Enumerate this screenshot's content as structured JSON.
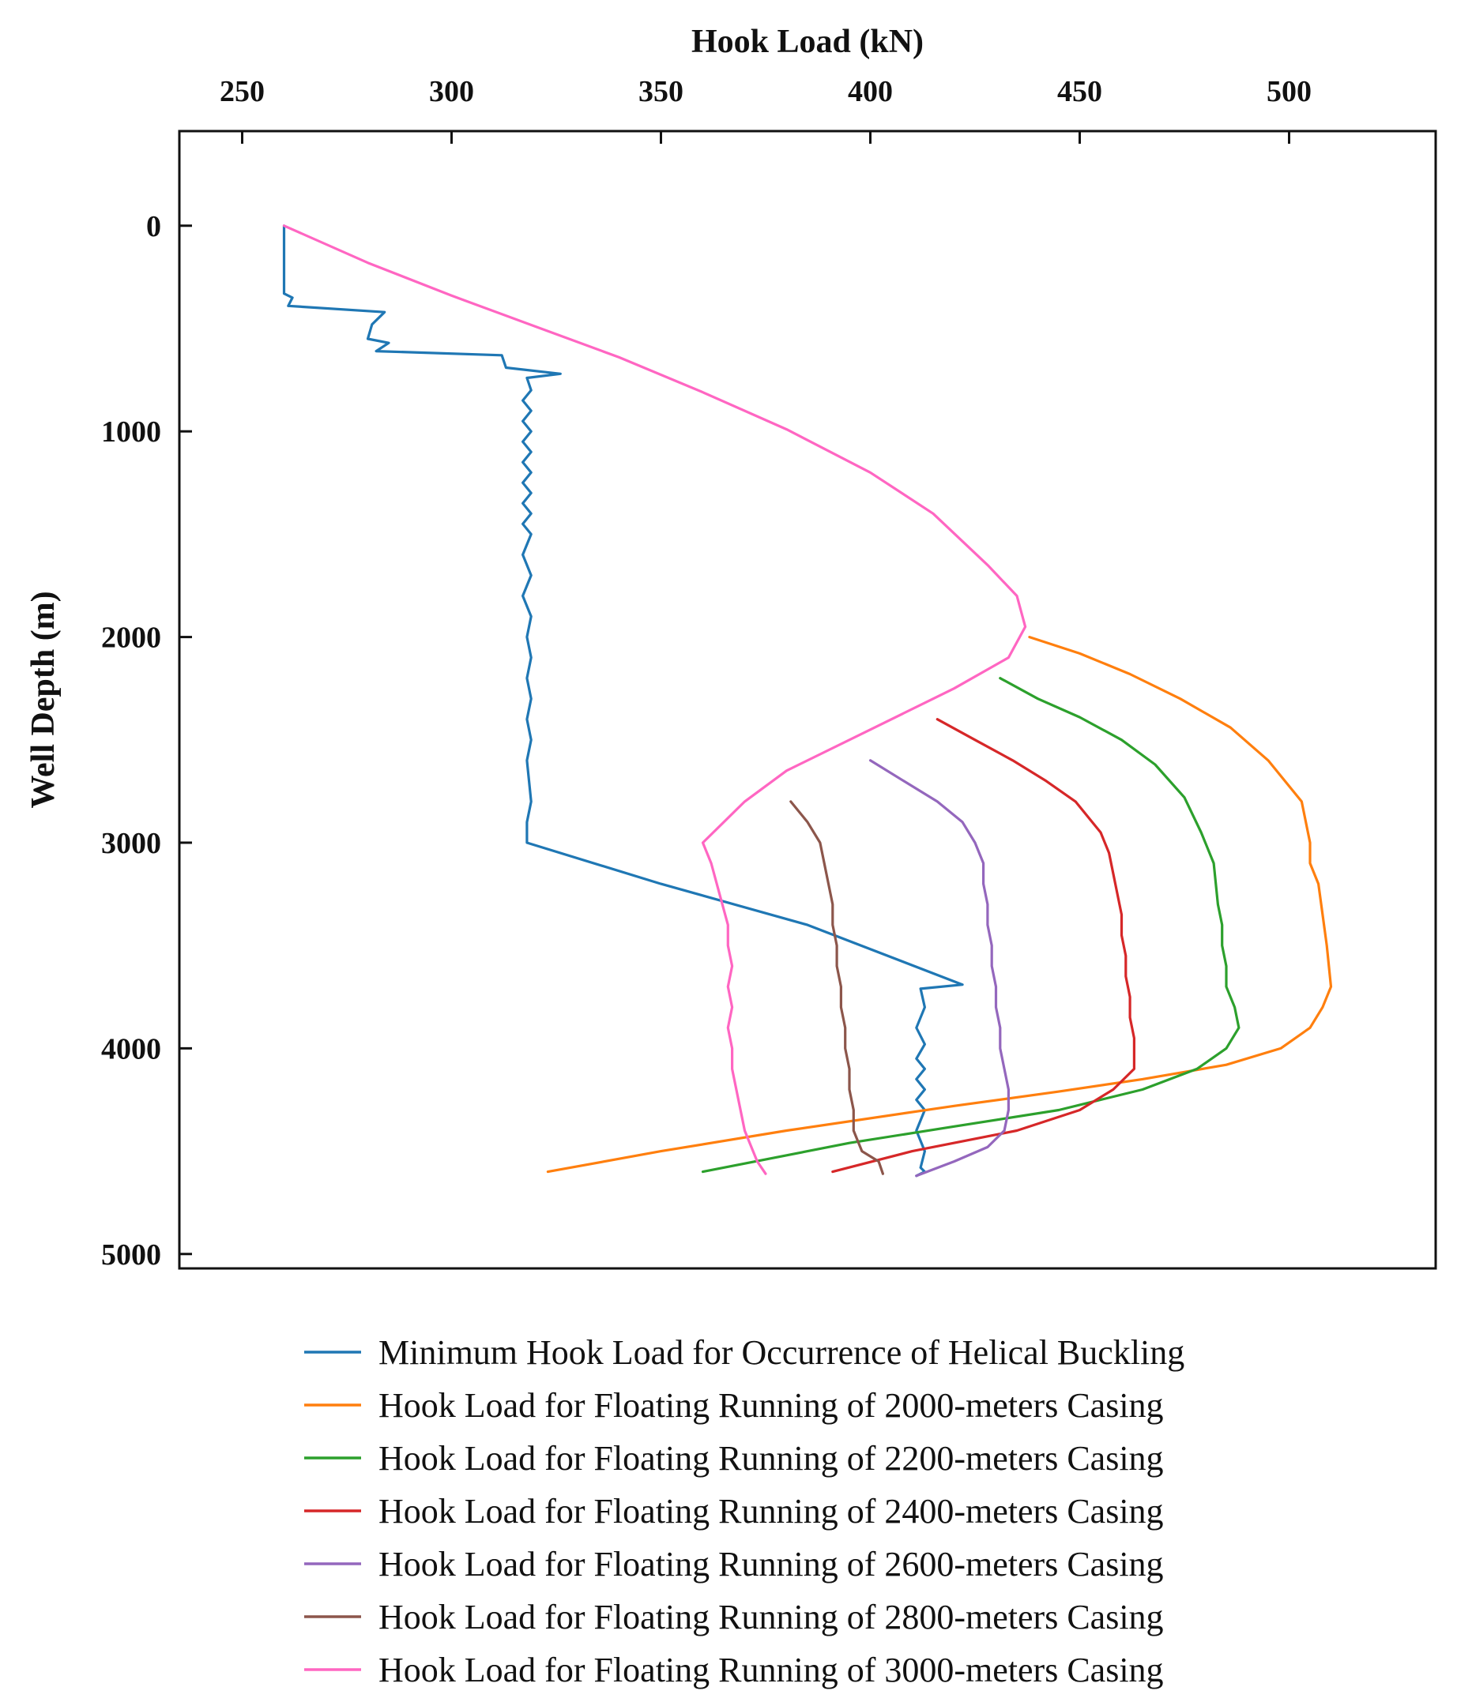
{
  "chart_data": {
    "type": "line",
    "xlabel": "Hook Load (kN)",
    "ylabel": "Well Depth (m)",
    "xlim": [
      235,
      535
    ],
    "ylim": [
      -460,
      5070
    ],
    "x_axis_position": "top",
    "y_axis_inverted": true,
    "grid": false,
    "legend_position": "bottom",
    "x_ticks": [
      250,
      300,
      350,
      400,
      450,
      500
    ],
    "x_tick_labels": [
      "250",
      "300",
      "350",
      "400",
      "450",
      "500"
    ],
    "y_ticks": [
      0,
      1000,
      2000,
      3000,
      4000,
      5000
    ],
    "y_tick_labels": [
      "0",
      "1000",
      "2000",
      "3000",
      "4000",
      "5000"
    ],
    "series": [
      {
        "name": "Minimum Hook Load for Occurrence of Helical Buckling",
        "color": "#1f77b4",
        "x": [
          260,
          260,
          260,
          262,
          261,
          284,
          281,
          280,
          285,
          282,
          312,
          313,
          326,
          318,
          319,
          317,
          319,
          317,
          319,
          317,
          319,
          317,
          319,
          317,
          319,
          317,
          319,
          317,
          319,
          317,
          319,
          317,
          319,
          318,
          319,
          318,
          319,
          318,
          319,
          318,
          319,
          318,
          318,
          350,
          385,
          422,
          412,
          413,
          411,
          413,
          411,
          413,
          411,
          413,
          411,
          413,
          411,
          413,
          412,
          413,
          411
        ],
        "y": [
          0,
          100,
          330,
          350,
          390,
          420,
          480,
          550,
          570,
          610,
          630,
          690,
          720,
          740,
          800,
          850,
          900,
          950,
          1000,
          1050,
          1100,
          1150,
          1200,
          1250,
          1300,
          1350,
          1400,
          1450,
          1500,
          1600,
          1700,
          1800,
          1900,
          2000,
          2100,
          2200,
          2300,
          2400,
          2500,
          2600,
          2800,
          2900,
          3000,
          3200,
          3400,
          3690,
          3710,
          3800,
          3900,
          3980,
          4050,
          4100,
          4150,
          4200,
          4250,
          4300,
          4400,
          4500,
          4580,
          4600,
          4620
        ]
      },
      {
        "name": "Hook Load for Floating Running of 2000-meters Casing",
        "color": "#ff7f0e",
        "x": [
          438,
          450,
          462,
          474,
          486,
          495,
          503,
          504,
          505,
          505,
          507,
          508,
          509,
          510,
          508,
          505,
          498,
          485,
          465,
          445,
          420,
          380,
          350,
          323
        ],
        "y": [
          2000,
          2080,
          2180,
          2300,
          2440,
          2600,
          2800,
          2900,
          3000,
          3100,
          3200,
          3350,
          3500,
          3700,
          3800,
          3900,
          4000,
          4080,
          4150,
          4210,
          4280,
          4400,
          4500,
          4600
        ]
      },
      {
        "name": "Hook Load for Floating Running of 2200-meters Casing",
        "color": "#2ca02c",
        "x": [
          431,
          440,
          450,
          460,
          468,
          475,
          479,
          482,
          483,
          484,
          484,
          485,
          485,
          487,
          488,
          485,
          478,
          465,
          445,
          420,
          395,
          360
        ],
        "y": [
          2200,
          2300,
          2390,
          2500,
          2620,
          2780,
          2950,
          3100,
          3300,
          3400,
          3500,
          3600,
          3700,
          3800,
          3900,
          4000,
          4100,
          4200,
          4300,
          4380,
          4460,
          4600
        ]
      },
      {
        "name": "Hook Load for Floating Running of 2400-meters Casing",
        "color": "#d62728",
        "x": [
          416,
          425,
          434,
          442,
          449,
          455,
          457,
          458,
          459,
          460,
          460,
          461,
          461,
          462,
          462,
          463,
          463,
          458,
          450,
          435,
          410,
          391
        ],
        "y": [
          2400,
          2500,
          2600,
          2700,
          2800,
          2950,
          3050,
          3150,
          3250,
          3350,
          3450,
          3550,
          3650,
          3750,
          3850,
          3950,
          4100,
          4200,
          4300,
          4400,
          4500,
          4600
        ]
      },
      {
        "name": "Hook Load for Floating Running of 2600-meters Casing",
        "color": "#9467bd",
        "x": [
          400,
          408,
          416,
          422,
          425,
          427,
          427,
          428,
          428,
          429,
          429,
          430,
          430,
          431,
          431,
          432,
          433,
          433,
          432,
          428,
          420,
          411
        ],
        "y": [
          2600,
          2700,
          2800,
          2900,
          3000,
          3100,
          3200,
          3300,
          3400,
          3500,
          3600,
          3700,
          3800,
          3900,
          4000,
          4100,
          4200,
          4300,
          4400,
          4480,
          4550,
          4620
        ]
      },
      {
        "name": "Hook Load for Floating Running of 2800-meters Casing",
        "color": "#8c564b",
        "x": [
          381,
          385,
          388,
          389,
          390,
          391,
          391,
          392,
          392,
          393,
          393,
          394,
          394,
          395,
          395,
          396,
          396,
          397,
          398,
          402,
          403
        ],
        "y": [
          2800,
          2900,
          3000,
          3100,
          3200,
          3300,
          3400,
          3500,
          3600,
          3700,
          3800,
          3900,
          4000,
          4100,
          4200,
          4300,
          4400,
          4450,
          4500,
          4550,
          4610
        ]
      },
      {
        "name": "Hook Load for Floating Running of 3000-meters Casing",
        "color": "#ff66c2",
        "x": [
          260,
          280,
          300,
          320,
          340,
          360,
          380,
          400,
          415,
          428,
          435,
          437,
          433,
          420,
          400,
          380,
          370,
          360,
          362,
          364,
          366,
          366,
          367,
          366,
          367,
          366,
          367,
          367,
          368,
          369,
          370,
          371,
          372,
          373,
          375
        ],
        "y": [
          0,
          180,
          340,
          490,
          640,
          810,
          990,
          1200,
          1400,
          1650,
          1800,
          1950,
          2100,
          2250,
          2450,
          2650,
          2800,
          3000,
          3100,
          3250,
          3400,
          3500,
          3600,
          3700,
          3800,
          3900,
          4000,
          4100,
          4200,
          4300,
          4400,
          4450,
          4500,
          4550,
          4610
        ]
      }
    ]
  }
}
